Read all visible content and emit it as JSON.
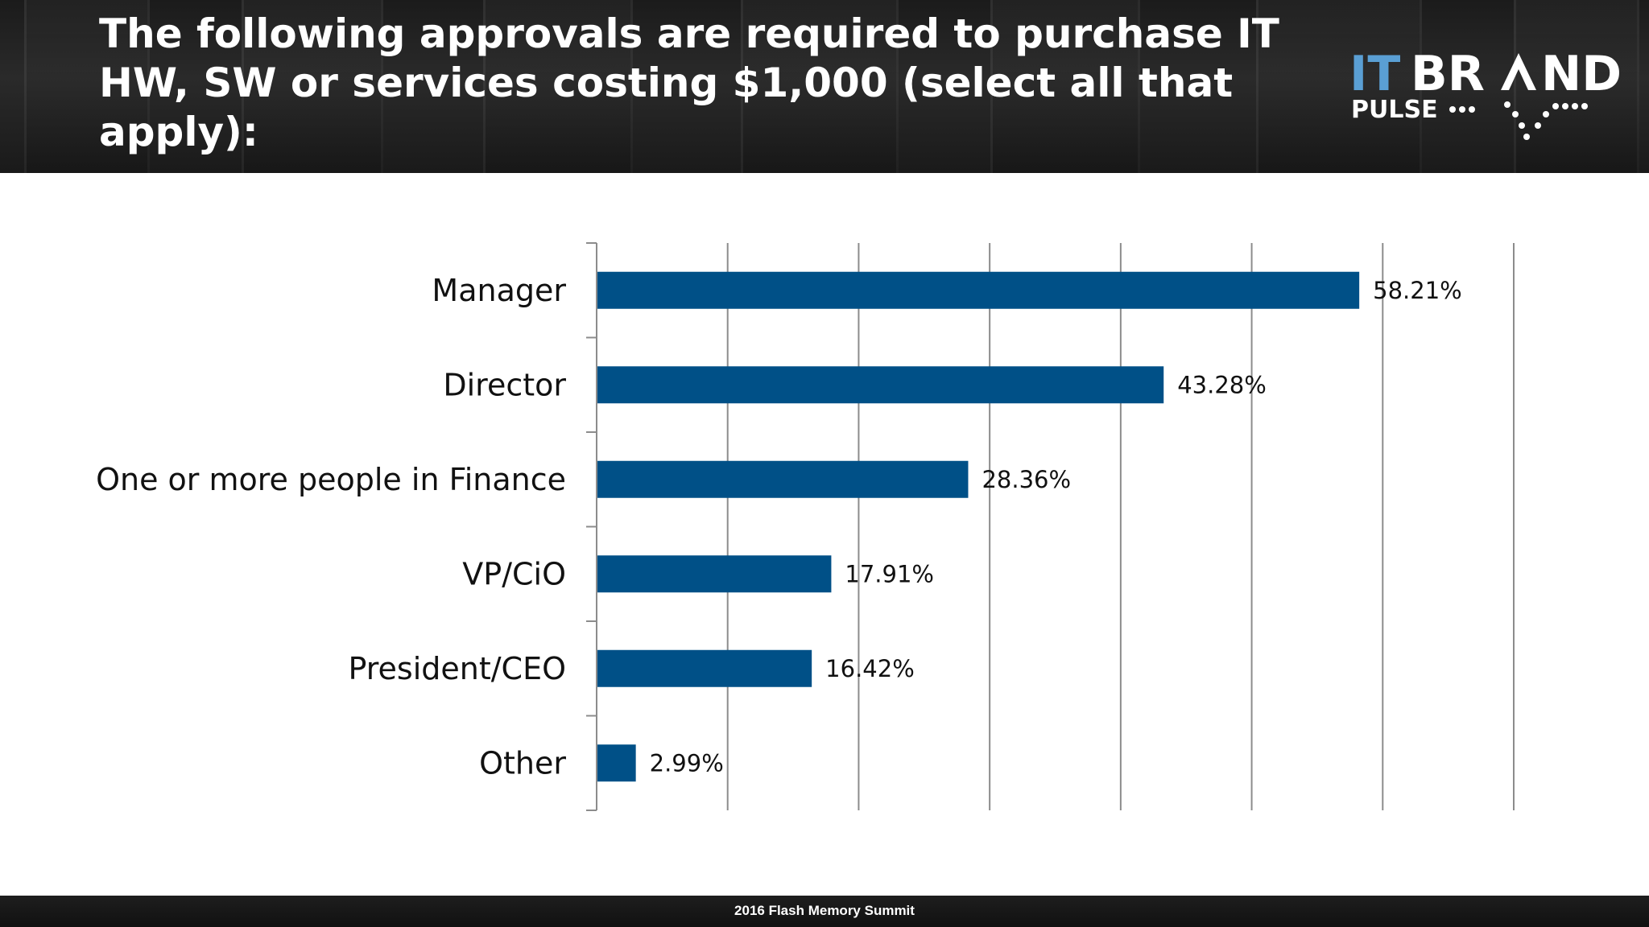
{
  "slide": {
    "title": "The following approvals are required to purchase IT HW, SW or services costing $1,000 (select all that apply):",
    "footer": "2016 Flash Memory Summit"
  },
  "logo": {
    "line1_a": "IT",
    "line1_b": "BR",
    "line1_c": "ND",
    "line2": "PULSE",
    "accent": "#5a9fd4"
  },
  "colors": {
    "bar": "#005087",
    "header_bg": "#1f1f1f",
    "grid": "#8c8c8c"
  },
  "chart_data": {
    "type": "bar",
    "orientation": "horizontal",
    "categories": [
      "Manager",
      "Director",
      "One or more people in Finance",
      "VP/CiO",
      "President/CEO",
      "Other"
    ],
    "values": [
      58.21,
      43.28,
      28.36,
      17.91,
      16.42,
      2.99
    ],
    "value_labels": [
      "58.21%",
      "43.28%",
      "28.36%",
      "17.91%",
      "16.42%",
      "2.99%"
    ],
    "xlim": [
      0,
      70
    ],
    "gridlines": [
      0,
      10,
      20,
      30,
      40,
      50,
      60,
      70
    ],
    "grid": true,
    "legend": "none"
  }
}
